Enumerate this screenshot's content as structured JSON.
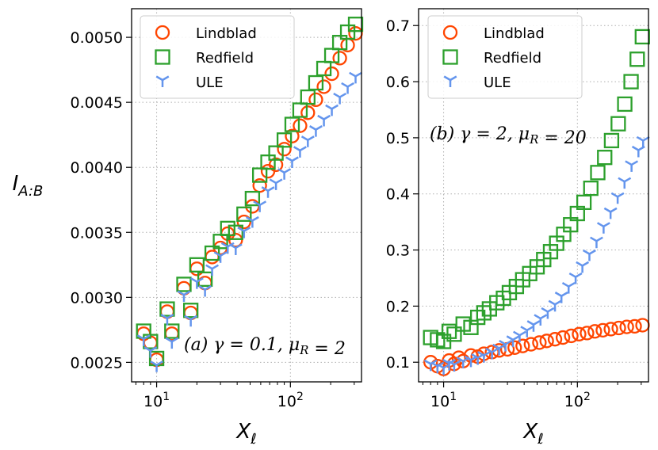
{
  "chart_data": [
    {
      "type": "scatter",
      "panel": "left",
      "xscale": "log",
      "xlim": [
        6.5,
        340
      ],
      "ylim": [
        0.00235,
        0.00522
      ],
      "xlabel": "X_ℓ",
      "ylabel": "I_A:B",
      "x_ticks": [
        {
          "value": 10,
          "label": "10¹"
        },
        {
          "value": 100,
          "label": "10²"
        }
      ],
      "y_ticks": [
        {
          "value": 0.0025,
          "label": "0.0025"
        },
        {
          "value": 0.003,
          "label": "0.0030"
        },
        {
          "value": 0.0035,
          "label": "0.0035"
        },
        {
          "value": 0.004,
          "label": "0.0040"
        },
        {
          "value": 0.0045,
          "label": "0.0045"
        },
        {
          "value": 0.005,
          "label": "0.0050"
        }
      ],
      "grid": true,
      "legend_position": "top-left",
      "annotation": "(a) γ = 0.1, μ_R = 2",
      "series": [
        {
          "name": "Lindblad",
          "marker": "circle",
          "color": "#ff4500",
          "x": [
            8,
            9,
            10,
            12,
            13,
            16,
            18,
            20,
            23,
            26,
            30,
            34,
            39,
            45,
            52,
            59,
            68,
            78,
            90,
            103,
            118,
            135,
            155,
            178,
            204,
            234,
            268,
            307
          ],
          "y": [
            0.00272,
            0.00265,
            0.00252,
            0.00289,
            0.00272,
            0.00307,
            0.00288,
            0.00322,
            0.00311,
            0.00331,
            0.00338,
            0.00349,
            0.00344,
            0.00358,
            0.0037,
            0.00386,
            0.00397,
            0.00402,
            0.00414,
            0.00424,
            0.00432,
            0.00442,
            0.00452,
            0.00462,
            0.00472,
            0.00484,
            0.00494,
            0.00503
          ]
        },
        {
          "name": "Redfield",
          "marker": "square",
          "color": "#2ca02c",
          "x": [
            8,
            9,
            10,
            12,
            13,
            16,
            18,
            20,
            23,
            26,
            30,
            34,
            39,
            45,
            52,
            59,
            68,
            78,
            90,
            103,
            118,
            135,
            155,
            178,
            204,
            234,
            268,
            307
          ],
          "y": [
            0.00274,
            0.00266,
            0.00253,
            0.00291,
            0.00274,
            0.0031,
            0.0029,
            0.00325,
            0.00314,
            0.00334,
            0.00343,
            0.00353,
            0.0035,
            0.00364,
            0.00376,
            0.00394,
            0.00404,
            0.00411,
            0.00421,
            0.00433,
            0.00444,
            0.00454,
            0.00465,
            0.00476,
            0.00486,
            0.00496,
            0.00504,
            0.0051
          ]
        },
        {
          "name": "ULE",
          "marker": "tri_down",
          "color": "#6495ed",
          "x": [
            8,
            9,
            10,
            12,
            13,
            16,
            18,
            20,
            23,
            26,
            30,
            34,
            39,
            45,
            52,
            59,
            68,
            78,
            90,
            103,
            118,
            135,
            155,
            178,
            204,
            234,
            268,
            307
          ],
          "y": [
            0.00268,
            0.00259,
            0.00248,
            0.00284,
            0.00266,
            0.00302,
            0.00283,
            0.00312,
            0.00306,
            0.00322,
            0.00332,
            0.00339,
            0.00338,
            0.00351,
            0.00359,
            0.00371,
            0.00382,
            0.00388,
            0.00396,
            0.00405,
            0.00413,
            0.00421,
            0.00429,
            0.00437,
            0.00445,
            0.00454,
            0.00462,
            0.0047
          ]
        }
      ]
    },
    {
      "type": "scatter",
      "panel": "right",
      "xscale": "log",
      "xlim": [
        6.5,
        340
      ],
      "ylim": [
        0.065,
        0.73
      ],
      "xlabel": "X_ℓ",
      "ylabel": "",
      "x_ticks": [
        {
          "value": 10,
          "label": "10¹"
        },
        {
          "value": 100,
          "label": "10²"
        }
      ],
      "y_ticks": [
        {
          "value": 0.1,
          "label": "0.1"
        },
        {
          "value": 0.2,
          "label": "0.2"
        },
        {
          "value": 0.3,
          "label": "0.3"
        },
        {
          "value": 0.4,
          "label": "0.4"
        },
        {
          "value": 0.5,
          "label": "0.5"
        },
        {
          "value": 0.6,
          "label": "0.6"
        },
        {
          "value": 0.7,
          "label": "0.7"
        }
      ],
      "grid": true,
      "legend_position": "top-left",
      "annotation": "(b) γ = 2, μ_R = 20",
      "series": [
        {
          "name": "Lindblad",
          "marker": "circle",
          "color": "#ff4500",
          "x": [
            8,
            9,
            10,
            11,
            12,
            13,
            14,
            16,
            18,
            20,
            23,
            26,
            30,
            34,
            39,
            45,
            52,
            59,
            68,
            78,
            90,
            103,
            118,
            135,
            155,
            178,
            204,
            234,
            268,
            307
          ],
          "y": [
            0.1,
            0.093,
            0.088,
            0.103,
            0.097,
            0.108,
            0.102,
            0.112,
            0.11,
            0.115,
            0.118,
            0.121,
            0.123,
            0.126,
            0.129,
            0.132,
            0.135,
            0.138,
            0.141,
            0.144,
            0.147,
            0.15,
            0.152,
            0.155,
            0.157,
            0.159,
            0.161,
            0.163,
            0.164,
            0.166
          ]
        },
        {
          "name": "Redfield",
          "marker": "square",
          "color": "#2ca02c",
          "x": [
            8,
            9,
            10,
            11,
            12,
            14,
            16,
            18,
            20,
            22,
            25,
            28,
            31,
            35,
            39,
            44,
            50,
            56,
            63,
            70,
            79,
            89,
            100,
            112,
            126,
            142,
            160,
            180,
            202,
            226,
            252,
            280,
            306
          ],
          "y": [
            0.144,
            0.14,
            0.137,
            0.155,
            0.15,
            0.168,
            0.162,
            0.18,
            0.188,
            0.195,
            0.206,
            0.214,
            0.224,
            0.235,
            0.247,
            0.258,
            0.27,
            0.283,
            0.297,
            0.312,
            0.328,
            0.345,
            0.365,
            0.385,
            0.41,
            0.438,
            0.465,
            0.495,
            0.525,
            0.56,
            0.6,
            0.64,
            0.68
          ]
        },
        {
          "name": "ULE",
          "marker": "tri_down",
          "color": "#6495ed",
          "x": [
            8,
            9,
            10,
            11,
            12,
            14,
            16,
            18,
            20,
            23,
            26,
            29,
            33,
            37,
            42,
            47,
            53,
            60,
            68,
            76,
            86,
            97,
            109,
            123,
            139,
            157,
            177,
            200,
            225,
            254,
            286,
            310
          ],
          "y": [
            0.097,
            0.093,
            0.09,
            0.098,
            0.096,
            0.102,
            0.104,
            0.108,
            0.112,
            0.118,
            0.125,
            0.132,
            0.14,
            0.148,
            0.157,
            0.167,
            0.178,
            0.19,
            0.203,
            0.218,
            0.235,
            0.252,
            0.272,
            0.293,
            0.316,
            0.342,
            0.368,
            0.395,
            0.422,
            0.452,
            0.478,
            0.495
          ]
        }
      ]
    }
  ]
}
